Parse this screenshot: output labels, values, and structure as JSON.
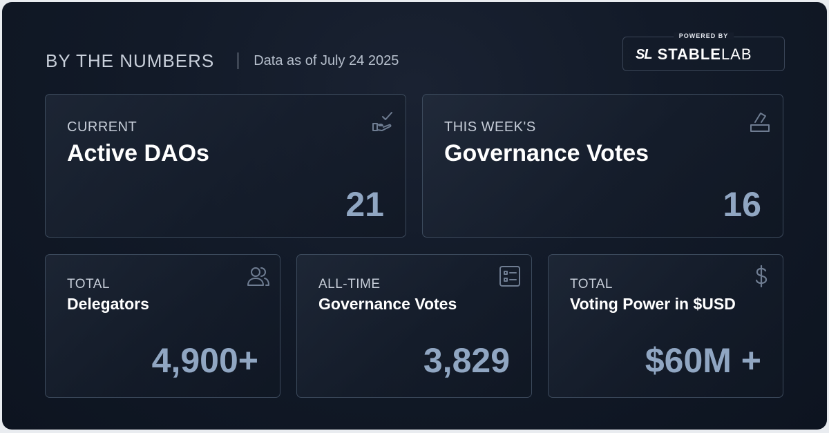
{
  "header": {
    "title": "BY THE NUMBERS",
    "date": "Data as of July 24 2025"
  },
  "powered_by": {
    "label": "POWERED BY",
    "logo_mark": "SL",
    "logo_strong": "STABLE",
    "logo_light": "LAB"
  },
  "cards": {
    "active_daos": {
      "eyebrow": "CURRENT",
      "title": "Active DAOs",
      "value": "21",
      "icon": "hand-check-icon"
    },
    "weekly_votes": {
      "eyebrow": "THIS WEEK'S",
      "title": "Governance Votes",
      "value": "16",
      "icon": "ballot-box-icon"
    },
    "delegators": {
      "eyebrow": "TOTAL",
      "title": "Delegators",
      "value": "4,900+",
      "icon": "users-icon"
    },
    "alltime_votes": {
      "eyebrow": "ALL-TIME",
      "title": "Governance Votes",
      "value": "3,829",
      "icon": "checklist-icon"
    },
    "voting_power": {
      "eyebrow": "TOTAL",
      "title": "Voting Power in $USD",
      "value": "$60M +",
      "icon": "dollar-icon"
    }
  },
  "colors": {
    "background": "#121a28",
    "value_text": "#90a6c2",
    "card_border": "#3c4a5c",
    "icon": "#6f7d92"
  }
}
